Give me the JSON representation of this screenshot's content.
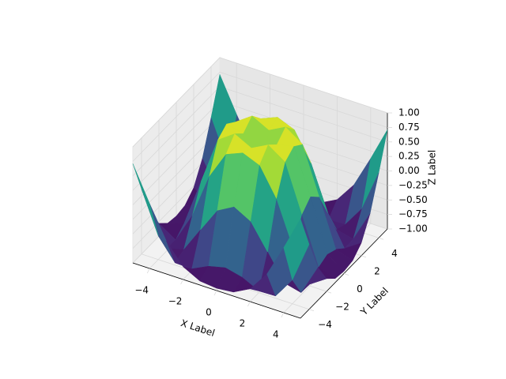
{
  "chart_data": {
    "type": "surface",
    "x_label": "X Label",
    "y_label": "Y Label",
    "z_label": "Z Label",
    "x": [
      -5,
      -4,
      -3,
      -2,
      -1,
      0,
      1,
      2,
      3,
      4,
      5
    ],
    "y": [
      -5,
      -4,
      -3,
      -2,
      -1,
      0,
      1,
      2,
      3,
      4,
      5
    ],
    "z": [
      [
        0.71,
        0.12,
        -0.43,
        -0.78,
        -0.93,
        -0.96,
        -0.93,
        -0.78,
        -0.43,
        0.12,
        0.71
      ],
      [
        0.12,
        -0.59,
        -0.96,
        -0.97,
        -0.83,
        -0.76,
        -0.83,
        -0.97,
        -0.96,
        -0.59,
        0.12
      ],
      [
        -0.43,
        -0.96,
        -0.89,
        -0.45,
        -0.02,
        0.14,
        -0.02,
        -0.45,
        -0.89,
        -0.96,
        -0.43
      ],
      [
        -0.78,
        -0.97,
        -0.45,
        0.31,
        0.79,
        0.91,
        0.79,
        0.31,
        -0.45,
        -0.97,
        -0.78
      ],
      [
        -0.93,
        -0.83,
        -0.02,
        0.79,
        0.99,
        0.84,
        0.99,
        0.79,
        -0.02,
        -0.83,
        -0.93
      ],
      [
        -0.96,
        -0.76,
        0.14,
        0.91,
        0.84,
        0,
        0.84,
        0.91,
        0.14,
        -0.76,
        -0.96
      ],
      [
        -0.93,
        -0.83,
        -0.02,
        0.79,
        0.99,
        0.84,
        0.99,
        0.79,
        -0.02,
        -0.83,
        -0.93
      ],
      [
        -0.78,
        -0.97,
        -0.45,
        0.31,
        0.79,
        0.91,
        0.79,
        0.31,
        -0.45,
        -0.97,
        -0.78
      ],
      [
        -0.43,
        -0.96,
        -0.89,
        -0.45,
        -0.02,
        0.14,
        -0.02,
        -0.45,
        -0.89,
        -0.96,
        -0.43
      ],
      [
        0.12,
        -0.59,
        -0.96,
        -0.97,
        -0.83,
        -0.76,
        -0.83,
        -0.97,
        -0.96,
        -0.59,
        0.12
      ],
      [
        0.71,
        0.12,
        -0.43,
        -0.78,
        -0.93,
        -0.96,
        -0.93,
        -0.78,
        -0.43,
        0.12,
        0.71
      ]
    ],
    "colormap": [
      "#440154",
      "#482878",
      "#3e4989",
      "#31688e",
      "#26828e",
      "#1f9e89",
      "#35b779",
      "#6ece58",
      "#b5de2b",
      "#fde725"
    ],
    "xlim": [
      -5,
      5
    ],
    "ylim": [
      -5,
      5
    ],
    "zlim": [
      -1,
      1
    ],
    "xticks": [
      {
        "value": -4,
        "label": "−4"
      },
      {
        "value": -2,
        "label": "−2"
      },
      0,
      2,
      4
    ],
    "yticks": [
      {
        "value": -4,
        "label": "−4"
      },
      {
        "value": -2,
        "label": "−2"
      },
      0,
      2,
      4
    ],
    "zticks": [
      {
        "value": -1,
        "label": "−1.00"
      },
      {
        "value": -0.75,
        "label": "−0.75"
      },
      {
        "value": -0.5,
        "label": "−0.50"
      },
      {
        "value": -0.25,
        "label": "−0.25"
      },
      {
        "value": 0,
        "label": "0.00"
      },
      {
        "value": 0.25,
        "label": "0.25"
      },
      {
        "value": 0.5,
        "label": "0.50"
      },
      {
        "value": 0.75,
        "label": "0.75"
      },
      {
        "value": 1,
        "label": "1.00"
      }
    ],
    "grid": true
  }
}
